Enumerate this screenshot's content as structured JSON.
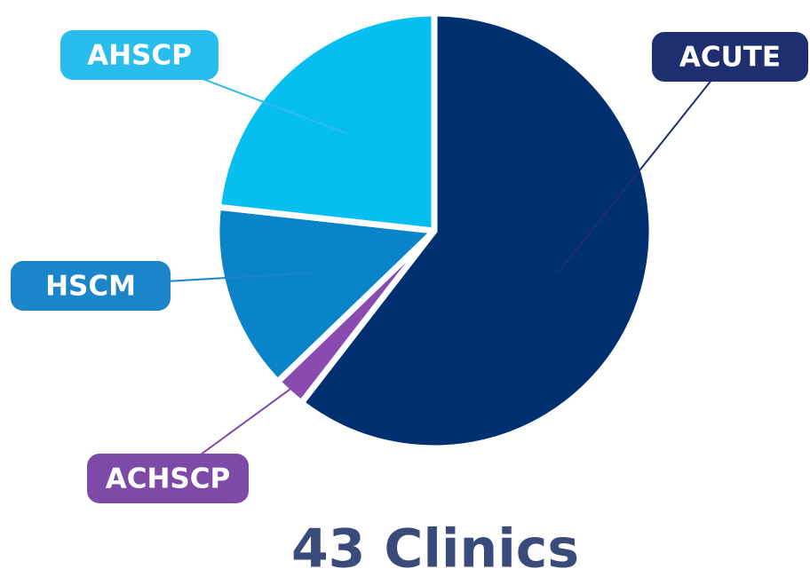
{
  "chart_data": {
    "type": "pie",
    "title": "43 Clinics",
    "categories": [
      "ACUTE",
      "ACHSCP",
      "HSCM",
      "AHSCP"
    ],
    "values": [
      26,
      1,
      6,
      10
    ],
    "colors": [
      "#003070",
      "#8a4bb0",
      "#0a84c8",
      "#06bff0"
    ],
    "label_colors": [
      "#1f2e6e",
      "#7e4aa8",
      "#1a85c8",
      "#29bdee"
    ]
  }
}
